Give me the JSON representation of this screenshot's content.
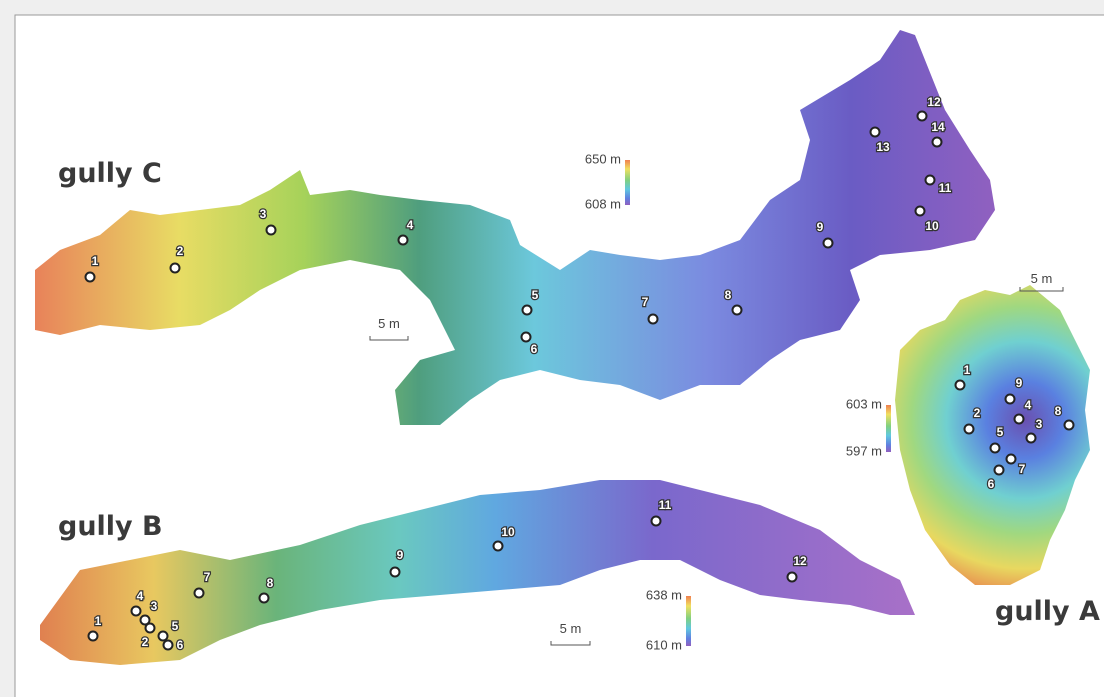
{
  "gullies": [
    {
      "name": "gully C",
      "legend": {
        "max": "650 m",
        "min": "608 m"
      },
      "scale": "5 m",
      "points": [
        {
          "label": "1"
        },
        {
          "label": "2"
        },
        {
          "label": "3"
        },
        {
          "label": "4"
        },
        {
          "label": "5"
        },
        {
          "label": "6"
        },
        {
          "label": "7"
        },
        {
          "label": "8"
        },
        {
          "label": "9"
        },
        {
          "label": "10"
        },
        {
          "label": "11"
        },
        {
          "label": "12"
        },
        {
          "label": "13"
        },
        {
          "label": "14"
        }
      ]
    },
    {
      "name": "gully B",
      "legend": {
        "max": "638 m",
        "min": "610 m"
      },
      "scale": "5 m",
      "points": [
        {
          "label": "1"
        },
        {
          "label": "2"
        },
        {
          "label": "3"
        },
        {
          "label": "4"
        },
        {
          "label": "5"
        },
        {
          "label": "6"
        },
        {
          "label": "7"
        },
        {
          "label": "8"
        },
        {
          "label": "9"
        },
        {
          "label": "10"
        },
        {
          "label": "11"
        },
        {
          "label": "12"
        }
      ]
    },
    {
      "name": "gully A",
      "legend": {
        "max": "603 m",
        "min": "597 m"
      },
      "scale": "5 m",
      "points": [
        {
          "label": "1"
        },
        {
          "label": "2"
        },
        {
          "label": "3"
        },
        {
          "label": "4"
        },
        {
          "label": "5"
        },
        {
          "label": "6"
        },
        {
          "label": "7"
        },
        {
          "label": "8"
        },
        {
          "label": "9"
        }
      ]
    }
  ]
}
